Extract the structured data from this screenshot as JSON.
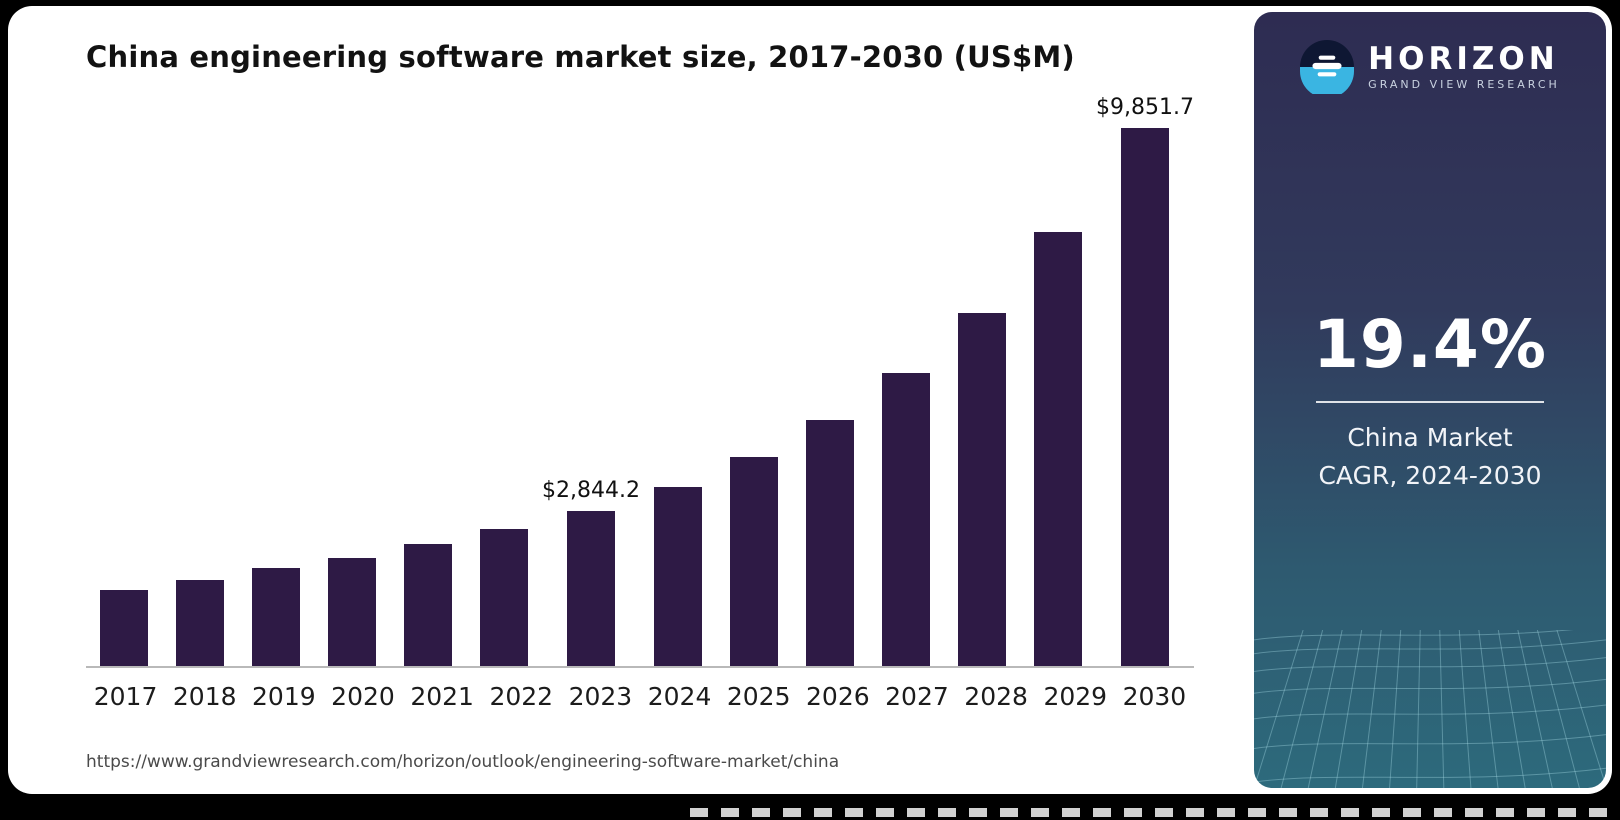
{
  "title": "China engineering software market size, 2017-2030 (US$M)",
  "source_url": "https://www.grandviewresearch.com/horizon/outlook/engineering-software-market/china",
  "sidebar": {
    "logo_text": "HORIZON",
    "logo_subtext": "GRAND VIEW RESEARCH",
    "stat_value": "19.4%",
    "stat_label_line1": "China Market",
    "stat_label_line2": "CAGR, 2024-2030"
  },
  "colors": {
    "bar": "#2e1a45",
    "accent_blue": "#3ab5e2",
    "sidebar_top": "#2e2c52",
    "sidebar_bottom": "#2d6a7c"
  },
  "chart_data": {
    "type": "bar",
    "title": "China engineering software market size, 2017-2030 (US$M)",
    "categories": [
      "2017",
      "2018",
      "2019",
      "2020",
      "2021",
      "2022",
      "2023",
      "2024",
      "2025",
      "2026",
      "2027",
      "2028",
      "2029",
      "2030"
    ],
    "values": [
      1390,
      1570,
      1790,
      1975,
      2230,
      2500,
      2844.2,
      3280,
      3820,
      4510,
      5360,
      6460,
      7950,
      9851.7
    ],
    "data_labels": {
      "2023": "$2,844.2",
      "2030": "$9,851.7"
    },
    "unit": "US$M",
    "xlabel": "",
    "ylabel": "",
    "ylim": [
      0,
      10000
    ],
    "grid": false,
    "legend": false
  }
}
